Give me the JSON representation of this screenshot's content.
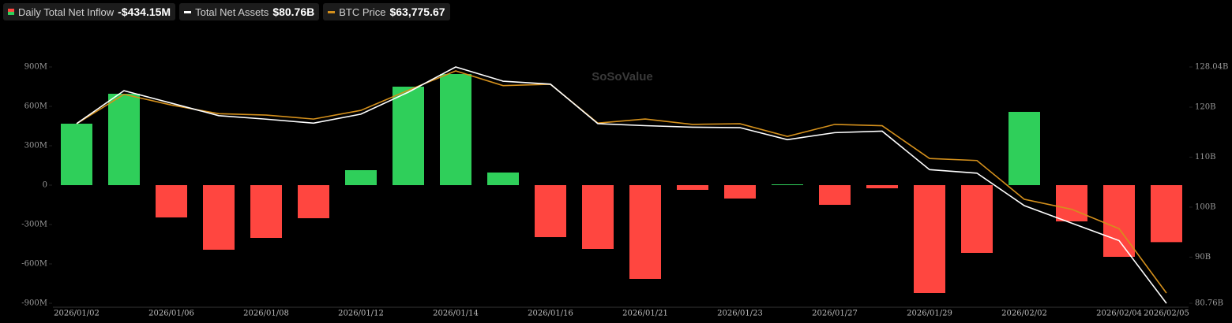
{
  "chart_data": {
    "type": "bar-line",
    "watermark": "SoSoValue",
    "categories": [
      "2026/01/02",
      null,
      "2026/01/06",
      null,
      "2026/01/08",
      null,
      "2026/01/12",
      null,
      "2026/01/14",
      null,
      "2026/01/16",
      null,
      "2026/01/21",
      null,
      "2026/01/23",
      null,
      "2026/01/27",
      null,
      "2026/01/29",
      null,
      "2026/02/02",
      null,
      "2026/02/04",
      "2026/02/05"
    ],
    "ylim": [
      -900,
      900
    ],
    "yticks": [
      {
        "value": -900,
        "label": "-900M"
      },
      {
        "value": -600,
        "label": "-600M"
      },
      {
        "value": -300,
        "label": "-300M"
      },
      0,
      {
        "value": 300,
        "label": "300M"
      },
      {
        "value": 600,
        "label": "600M"
      },
      {
        "value": 900,
        "label": "900M"
      }
    ],
    "y2lim": [
      80.76,
      128.04
    ],
    "y2ticks": [
      {
        "value": 80.76,
        "label": "80.76B"
      },
      {
        "value": 90,
        "label": "90B"
      },
      {
        "value": 100,
        "label": "100B"
      },
      {
        "value": 110,
        "label": "110B"
      },
      {
        "value": 120,
        "label": "120B"
      },
      {
        "value": 128.04,
        "label": "128.04B"
      }
    ],
    "series": [
      {
        "name": "Daily Total Net Inflow",
        "current": "-$434.15M",
        "type": "bar",
        "color": "#2fcf5a",
        "negative_color": "#ff4640",
        "values": [
          468,
          696,
          -246,
          -492,
          -402,
          -252,
          114,
          750,
          846,
          96,
          -396,
          -486,
          -714,
          -36,
          -102,
          6,
          -150,
          -24,
          -822,
          -516,
          558,
          -276,
          -546,
          -434.15
        ]
      },
      {
        "name": "Total Net Assets",
        "current": "$80.76B",
        "type": "line",
        "axis": "y2",
        "color": "#ffffff",
        "values": [
          116.7,
          123.3,
          120.8,
          118.3,
          117.6,
          116.8,
          118.6,
          123.0,
          128.04,
          125.2,
          124.6,
          116.7,
          116.3,
          116.0,
          115.9,
          113.5,
          114.9,
          115.2,
          107.5,
          106.8,
          100.3,
          96.8,
          93.3,
          80.76
        ]
      },
      {
        "name": "BTC Price",
        "current": "$63,775.67",
        "type": "line",
        "axis": "hidden",
        "color": "#d4901c",
        "values": [
          89100,
          93500,
          91900,
          90600,
          90400,
          89800,
          91100,
          94100,
          97000,
          94800,
          95000,
          89200,
          89800,
          89000,
          89100,
          87200,
          89000,
          88800,
          83900,
          83600,
          77800,
          76300,
          73400,
          63775.67
        ]
      }
    ]
  }
}
